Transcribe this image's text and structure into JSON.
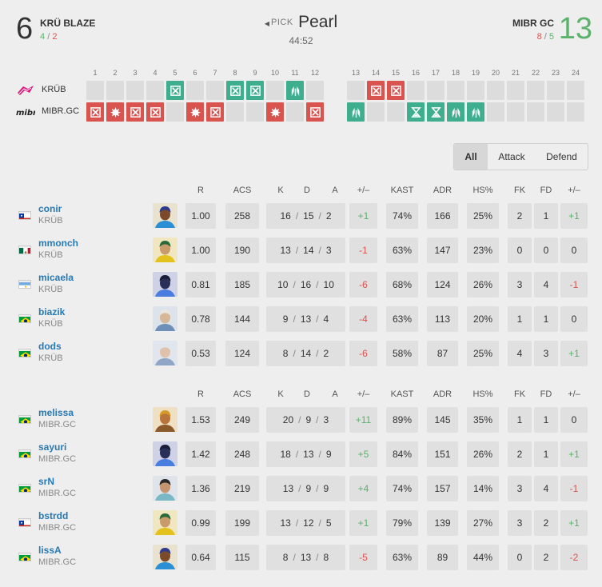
{
  "header": {
    "team_left": {
      "score": "6",
      "name": "KRÜ BLAZE",
      "half_atk": "4",
      "half_sep": "/",
      "half_def": "2"
    },
    "team_right": {
      "score": "13",
      "name": "MIBR GC",
      "half_atk": "8",
      "half_sep": "/",
      "half_def": "5"
    },
    "pick_label": "PICK",
    "map": "Pearl",
    "duration": "44:52"
  },
  "rounds": {
    "numbers": [
      "1",
      "2",
      "3",
      "4",
      "5",
      "6",
      "7",
      "8",
      "9",
      "10",
      "11",
      "12",
      "13",
      "14",
      "15",
      "16",
      "17",
      "18",
      "19",
      "20",
      "21",
      "22",
      "23",
      "24"
    ],
    "team1": {
      "label": "KRÜB",
      "logo": "kru-logo"
    },
    "team2": {
      "label": "MIBR.GC",
      "logo": "mibr-logo"
    },
    "team1_results": [
      "",
      "",
      "",
      "",
      "def-elim",
      "",
      "",
      "def-elim",
      "def-elim",
      "",
      "def-defuse",
      "",
      "",
      "atk-elim",
      "atk-elim",
      "",
      "",
      "",
      "",
      "",
      "",
      "",
      "",
      ""
    ],
    "team2_results": [
      "atk-elim",
      "atk-boom",
      "atk-elim",
      "atk-elim",
      "",
      "atk-boom",
      "atk-elim",
      "",
      "",
      "atk-boom",
      "",
      "atk-elim",
      "def-defuse",
      "",
      "",
      "def-time",
      "def-time",
      "def-defuse",
      "def-defuse",
      "",
      "",
      "",
      "",
      ""
    ]
  },
  "filter": {
    "all": "All",
    "attack": "Attack",
    "defend": "Defend"
  },
  "columns": {
    "r": "R",
    "acs": "ACS",
    "k": "K",
    "d": "D",
    "a": "A",
    "pm": "+/–",
    "kast": "KAST",
    "adr": "ADR",
    "hs": "HS%",
    "fk": "FK",
    "fd": "FD",
    "fpm": "+/–"
  },
  "players_team1": [
    {
      "name": "conir",
      "team": "KRÜB",
      "flag": "cl",
      "agent": "Neon",
      "r": "1.00",
      "acs": "258",
      "k": "16",
      "d": "15",
      "a": "2",
      "pm": "+1",
      "kast": "74%",
      "adr": "166",
      "hs": "25%",
      "fk": "2",
      "fd": "1",
      "fpm": "+1"
    },
    {
      "name": "mmonch",
      "team": "KRÜB",
      "flag": "mx",
      "agent": "Killjoy",
      "r": "1.00",
      "acs": "190",
      "k": "13",
      "d": "14",
      "a": "3",
      "pm": "-1",
      "kast": "63%",
      "adr": "147",
      "hs": "23%",
      "fk": "0",
      "fd": "0",
      "fpm": "0"
    },
    {
      "name": "micaela",
      "team": "KRÜB",
      "flag": "ar",
      "agent": "Omen",
      "r": "0.81",
      "acs": "185",
      "k": "10",
      "d": "16",
      "a": "10",
      "pm": "-6",
      "kast": "68%",
      "adr": "124",
      "hs": "26%",
      "fk": "3",
      "fd": "4",
      "fpm": "-1"
    },
    {
      "name": "biazik",
      "team": "KRÜB",
      "flag": "br",
      "agent": "Sova",
      "r": "0.78",
      "acs": "144",
      "k": "9",
      "d": "13",
      "a": "4",
      "pm": "-4",
      "kast": "63%",
      "adr": "113",
      "hs": "20%",
      "fk": "1",
      "fd": "1",
      "fpm": "0"
    },
    {
      "name": "dods",
      "team": "KRÜB",
      "flag": "br",
      "agent": "Jett",
      "r": "0.53",
      "acs": "124",
      "k": "8",
      "d": "14",
      "a": "2",
      "pm": "-6",
      "kast": "58%",
      "adr": "87",
      "hs": "25%",
      "fk": "4",
      "fd": "3",
      "fpm": "+1"
    }
  ],
  "players_team2": [
    {
      "name": "melissa",
      "team": "MIBR.GC",
      "flag": "br",
      "agent": "Breach",
      "r": "1.53",
      "acs": "249",
      "k": "20",
      "d": "9",
      "a": "3",
      "pm": "+11",
      "kast": "89%",
      "adr": "145",
      "hs": "35%",
      "fk": "1",
      "fd": "1",
      "fpm": "0"
    },
    {
      "name": "sayuri",
      "team": "MIBR.GC",
      "flag": "br",
      "agent": "Omen",
      "r": "1.42",
      "acs": "248",
      "k": "18",
      "d": "13",
      "a": "9",
      "pm": "+5",
      "kast": "84%",
      "adr": "151",
      "hs": "26%",
      "fk": "2",
      "fd": "1",
      "fpm": "+1"
    },
    {
      "name": "srN",
      "team": "MIBR.GC",
      "flag": "br",
      "agent": "Sage",
      "r": "1.36",
      "acs": "219",
      "k": "13",
      "d": "9",
      "a": "9",
      "pm": "+4",
      "kast": "74%",
      "adr": "157",
      "hs": "14%",
      "fk": "3",
      "fd": "4",
      "fpm": "-1"
    },
    {
      "name": "bstrdd",
      "team": "MIBR.GC",
      "flag": "cl",
      "agent": "Killjoy",
      "r": "0.99",
      "acs": "199",
      "k": "13",
      "d": "12",
      "a": "5",
      "pm": "+1",
      "kast": "79%",
      "adr": "139",
      "hs": "27%",
      "fk": "3",
      "fd": "2",
      "fpm": "+1"
    },
    {
      "name": "lissA",
      "team": "MIBR.GC",
      "flag": "br",
      "agent": "Neon",
      "r": "0.64",
      "acs": "115",
      "k": "8",
      "d": "13",
      "a": "8",
      "pm": "-5",
      "kast": "63%",
      "adr": "89",
      "hs": "44%",
      "fk": "0",
      "fd": "2",
      "fpm": "-2"
    }
  ],
  "colors": {
    "attack": "#d9534f",
    "defense": "#3fae8f",
    "win_score": "#5ab26b",
    "link": "#2779b4"
  }
}
